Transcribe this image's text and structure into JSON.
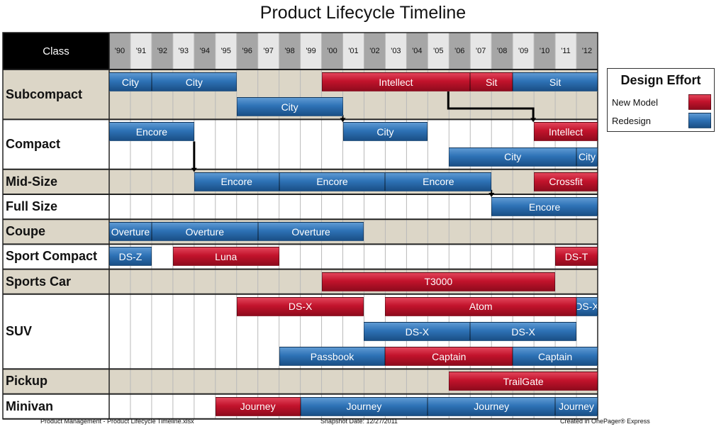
{
  "title": "Product Lifecycle Timeline",
  "class_header": "Class",
  "years": [
    "'90",
    "'91",
    "'92",
    "'93",
    "'94",
    "'95",
    "'96",
    "'97",
    "'98",
    "'99",
    "'00",
    "'01",
    "'02",
    "'03",
    "'04",
    "'05",
    "'06",
    "'07",
    "'08",
    "'09",
    "'10",
    "'11",
    "'12"
  ],
  "legend": {
    "title": "Design Effort",
    "new_model": "New Model",
    "redesign": "Redesign",
    "new_model_color": "#c2132c",
    "redesign_color": "#2e72b6"
  },
  "rows": [
    {
      "label": "Subcompact",
      "lanes": 2
    },
    {
      "label": "Compact",
      "lanes": 2
    },
    {
      "label": "Mid-Size",
      "lanes": 1
    },
    {
      "label": "Full Size",
      "lanes": 1
    },
    {
      "label": "Coupe",
      "lanes": 1
    },
    {
      "label": "Sport Compact",
      "lanes": 1
    },
    {
      "label": "Sports Car",
      "lanes": 1
    },
    {
      "label": "SUV",
      "lanes": 3
    },
    {
      "label": "Pickup",
      "lanes": 1
    },
    {
      "label": "Minivan",
      "lanes": 1
    }
  ],
  "bars": [
    {
      "row": 0,
      "lane": 0,
      "start": 1990,
      "end": 1992,
      "label": "City",
      "type": "redesign"
    },
    {
      "row": 0,
      "lane": 0,
      "start": 1992,
      "end": 1996,
      "label": "City",
      "type": "redesign"
    },
    {
      "row": 0,
      "lane": 0,
      "start": 2000,
      "end": 2007,
      "label": "Intellect",
      "type": "new"
    },
    {
      "row": 0,
      "lane": 0,
      "start": 2007,
      "end": 2009,
      "label": "Sit",
      "type": "new"
    },
    {
      "row": 0,
      "lane": 0,
      "start": 2009,
      "end": 2013,
      "label": "Sit",
      "type": "redesign"
    },
    {
      "row": 0,
      "lane": 1,
      "start": 1996,
      "end": 2001,
      "label": "City",
      "type": "redesign"
    },
    {
      "row": 1,
      "lane": 0,
      "start": 1990,
      "end": 1994,
      "label": "Encore",
      "type": "redesign"
    },
    {
      "row": 1,
      "lane": 0,
      "start": 2001,
      "end": 2005,
      "label": "City",
      "type": "redesign"
    },
    {
      "row": 1,
      "lane": 0,
      "start": 2010,
      "end": 2013,
      "label": "Intellect",
      "type": "new"
    },
    {
      "row": 1,
      "lane": 1,
      "start": 2006,
      "end": 2012,
      "label": "City",
      "type": "redesign"
    },
    {
      "row": 1,
      "lane": 1,
      "start": 2012,
      "end": 2013,
      "label": "City",
      "type": "redesign"
    },
    {
      "row": 2,
      "lane": 0,
      "start": 1994,
      "end": 1998,
      "label": "Encore",
      "type": "redesign"
    },
    {
      "row": 2,
      "lane": 0,
      "start": 1998,
      "end": 2003,
      "label": "Encore",
      "type": "redesign"
    },
    {
      "row": 2,
      "lane": 0,
      "start": 2003,
      "end": 2008,
      "label": "Encore",
      "type": "redesign"
    },
    {
      "row": 2,
      "lane": 0,
      "start": 2010,
      "end": 2013,
      "label": "Crossfit",
      "type": "new"
    },
    {
      "row": 3,
      "lane": 0,
      "start": 2008,
      "end": 2013,
      "label": "Encore",
      "type": "redesign"
    },
    {
      "row": 4,
      "lane": 0,
      "start": 1990,
      "end": 1992,
      "label": "Overture",
      "type": "redesign"
    },
    {
      "row": 4,
      "lane": 0,
      "start": 1992,
      "end": 1997,
      "label": "Overture",
      "type": "redesign"
    },
    {
      "row": 4,
      "lane": 0,
      "start": 1997,
      "end": 2002,
      "label": "Overture",
      "type": "redesign"
    },
    {
      "row": 5,
      "lane": 0,
      "start": 1990,
      "end": 1992,
      "label": "DS-Z",
      "type": "redesign"
    },
    {
      "row": 5,
      "lane": 0,
      "start": 1993,
      "end": 1998,
      "label": "Luna",
      "type": "new"
    },
    {
      "row": 5,
      "lane": 0,
      "start": 2011,
      "end": 2013,
      "label": "DS-T",
      "type": "new"
    },
    {
      "row": 6,
      "lane": 0,
      "start": 2000,
      "end": 2011,
      "label": "T3000",
      "type": "new"
    },
    {
      "row": 7,
      "lane": 0,
      "start": 1996,
      "end": 2002,
      "label": "DS-X",
      "type": "new"
    },
    {
      "row": 7,
      "lane": 0,
      "start": 2003,
      "end": 2012,
      "label": "Atom",
      "type": "new"
    },
    {
      "row": 7,
      "lane": 0,
      "start": 2012,
      "end": 2013,
      "label": "DS-X",
      "type": "redesign"
    },
    {
      "row": 7,
      "lane": 1,
      "start": 2002,
      "end": 2007,
      "label": "DS-X",
      "type": "redesign"
    },
    {
      "row": 7,
      "lane": 1,
      "start": 2007,
      "end": 2012,
      "label": "DS-X",
      "type": "redesign"
    },
    {
      "row": 7,
      "lane": 2,
      "start": 1998,
      "end": 2003,
      "label": "Passbook",
      "type": "redesign"
    },
    {
      "row": 7,
      "lane": 2,
      "start": 2003,
      "end": 2009,
      "label": "Captain",
      "type": "new"
    },
    {
      "row": 7,
      "lane": 2,
      "start": 2009,
      "end": 2013,
      "label": "Captain",
      "type": "redesign"
    },
    {
      "row": 8,
      "lane": 0,
      "start": 2006,
      "end": 2013,
      "label": "TrailGate",
      "type": "new"
    },
    {
      "row": 9,
      "lane": 0,
      "start": 1995,
      "end": 1999,
      "label": "Journey",
      "type": "new"
    },
    {
      "row": 9,
      "lane": 0,
      "start": 1999,
      "end": 2005,
      "label": "Journey",
      "type": "redesign"
    },
    {
      "row": 9,
      "lane": 0,
      "start": 2005,
      "end": 2011,
      "label": "Journey",
      "type": "redesign"
    },
    {
      "row": 9,
      "lane": 0,
      "start": 2011,
      "end": 2013,
      "label": "Journey",
      "type": "redesign"
    }
  ],
  "footer": {
    "left": "Product Management - Product Lifecycle Timeline.xlsx",
    "center": "Snapshot Date: 12/27/2011",
    "right": "Created in OnePager® Express"
  }
}
